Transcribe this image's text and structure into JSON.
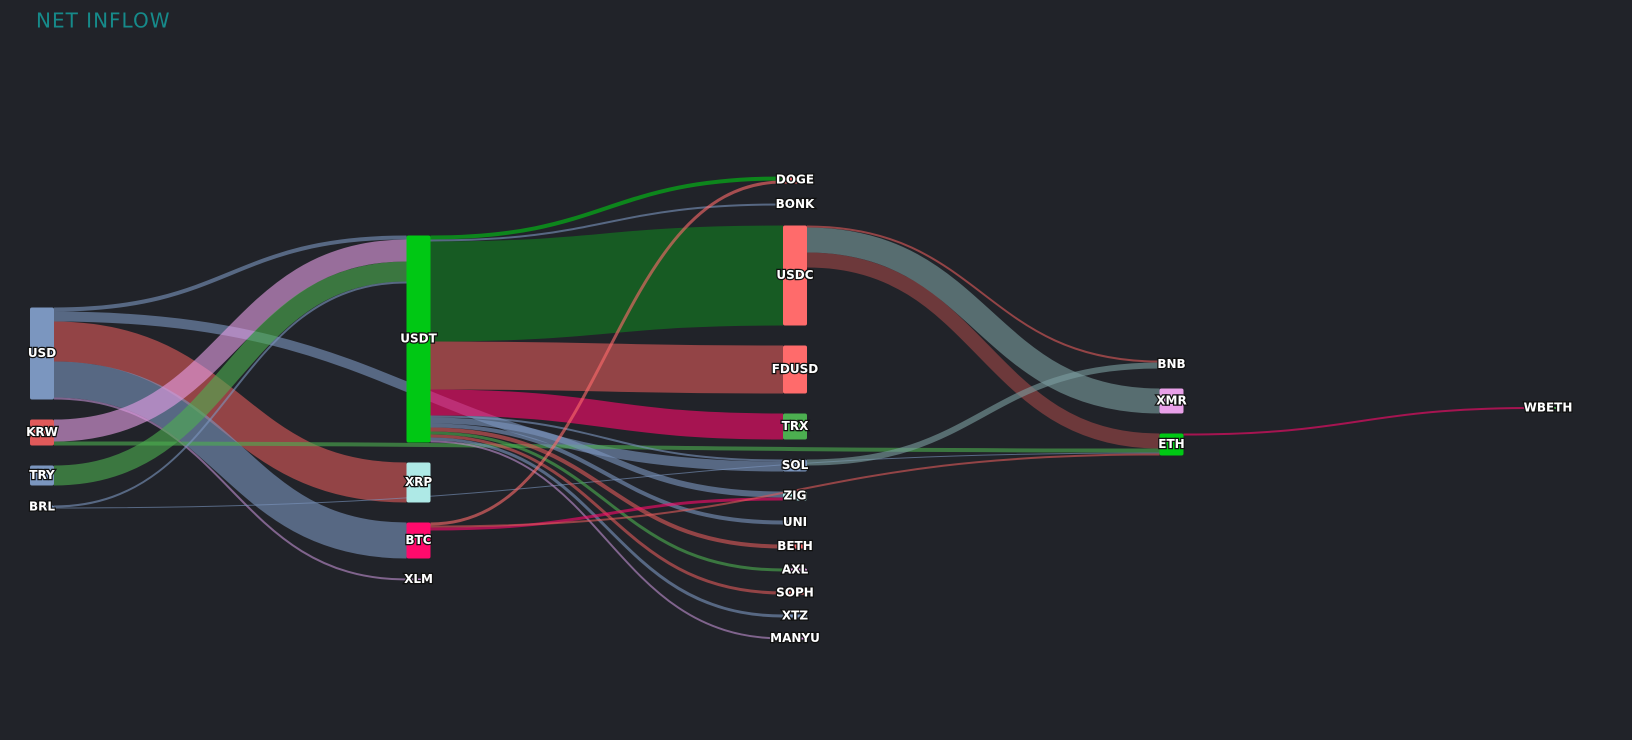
{
  "chart_data": {
    "type": "sankey",
    "title": "NET INFLOW",
    "nodes": [
      {
        "name": "USD",
        "color": "#7b96bf"
      },
      {
        "name": "KRW",
        "color": "#e05a5a"
      },
      {
        "name": "TRY",
        "color": "#7b96bf"
      },
      {
        "name": "BRL",
        "color": "#7b96bf"
      },
      {
        "name": "USDT",
        "color": "#00c814"
      },
      {
        "name": "XRP",
        "color": "#aee9e6"
      },
      {
        "name": "BTC",
        "color": "#ff0a6c"
      },
      {
        "name": "XLM",
        "color": "#c090d0"
      },
      {
        "name": "DOGE",
        "color": "#ff6b6b"
      },
      {
        "name": "BONK",
        "color": "#7b96bf"
      },
      {
        "name": "USDC",
        "color": "#ff6b6b"
      },
      {
        "name": "FDUSD",
        "color": "#ff6b6b"
      },
      {
        "name": "TRX",
        "color": "#4caf50"
      },
      {
        "name": "SOL",
        "color": "#7b96bf"
      },
      {
        "name": "ZIG",
        "color": "#aee9e6"
      },
      {
        "name": "UNI",
        "color": "#7b96bf"
      },
      {
        "name": "BETH",
        "color": "#ff6b6b"
      },
      {
        "name": "AXL",
        "color": "#e8a0e8"
      },
      {
        "name": "SOPH",
        "color": "#ff6b6b"
      },
      {
        "name": "XTZ",
        "color": "#7b96bf"
      },
      {
        "name": "MANYU",
        "color": "#e8a0e8"
      },
      {
        "name": "BNB",
        "color": "#7b9ea0"
      },
      {
        "name": "XMR",
        "color": "#e8a0e8"
      },
      {
        "name": "ETH",
        "color": "#00c814"
      },
      {
        "name": "WBETH",
        "color": "#4caf50"
      }
    ],
    "links": [
      {
        "source": "USD",
        "target": "XRP",
        "value": 40,
        "color": "#e05a5a"
      },
      {
        "source": "USD",
        "target": "BTC",
        "value": 36,
        "color": "#7b96bf"
      },
      {
        "source": "USD",
        "target": "USDT",
        "value": 4,
        "color": "#7b96bf"
      },
      {
        "source": "USD",
        "target": "SOL",
        "value": 10,
        "color": "#7b96bf"
      },
      {
        "source": "USD",
        "target": "XLM",
        "value": 2,
        "color": "#c090d0"
      },
      {
        "source": "KRW",
        "target": "USDT",
        "value": 22,
        "color": "#e8a0e8"
      },
      {
        "source": "KRW",
        "target": "ETH",
        "value": 4,
        "color": "#4caf50"
      },
      {
        "source": "TRY",
        "target": "USDT",
        "value": 20,
        "color": "#4caf50"
      },
      {
        "source": "BRL",
        "target": "USDT",
        "value": 2,
        "color": "#7b96bf"
      },
      {
        "source": "BRL",
        "target": "ETH",
        "value": 1,
        "color": "#7b96bf"
      },
      {
        "source": "USDT",
        "target": "DOGE",
        "value": 4,
        "color": "#00c814"
      },
      {
        "source": "USDT",
        "target": "BONK",
        "value": 2,
        "color": "#7b96bf"
      },
      {
        "source": "USDT",
        "target": "USDC",
        "value": 100,
        "color": "#108020"
      },
      {
        "source": "USDT",
        "target": "FDUSD",
        "value": 48,
        "color": "#e05a5a"
      },
      {
        "source": "USDT",
        "target": "TRX",
        "value": 26,
        "color": "#ff0a6c"
      },
      {
        "source": "USDT",
        "target": "SOL",
        "value": 2,
        "color": "#7b96bf"
      },
      {
        "source": "USDT",
        "target": "ZIG",
        "value": 6,
        "color": "#7b96bf"
      },
      {
        "source": "USDT",
        "target": "UNI",
        "value": 4,
        "color": "#7b96bf"
      },
      {
        "source": "USDT",
        "target": "BETH",
        "value": 4,
        "color": "#e05a5a"
      },
      {
        "source": "USDT",
        "target": "AXL",
        "value": 3,
        "color": "#4caf50"
      },
      {
        "source": "USDT",
        "target": "SOPH",
        "value": 3,
        "color": "#e05a5a"
      },
      {
        "source": "USDT",
        "target": "XTZ",
        "value": 3,
        "color": "#7b96bf"
      },
      {
        "source": "USDT",
        "target": "MANYU",
        "value": 2,
        "color": "#c090d0"
      },
      {
        "source": "BTC",
        "target": "DOGE",
        "value": 3,
        "color": "#ff6b6b"
      },
      {
        "source": "BTC",
        "target": "ZIG",
        "value": 3,
        "color": "#ff0a6c"
      },
      {
        "source": "BTC",
        "target": "ETH",
        "value": 2,
        "color": "#e05a5a"
      },
      {
        "source": "USDC",
        "target": "BNB",
        "value": 2,
        "color": "#e05a5a"
      },
      {
        "source": "USDC",
        "target": "XMR",
        "value": 25,
        "color": "#7b9ea0"
      },
      {
        "source": "USDC",
        "target": "ETH",
        "value": 15,
        "color": "#a04848"
      },
      {
        "source": "SOL",
        "target": "BNB",
        "value": 6,
        "color": "#7b9ea0"
      },
      {
        "source": "ETH",
        "target": "WBETH",
        "value": 2,
        "color": "#ff0a6c"
      }
    ]
  }
}
